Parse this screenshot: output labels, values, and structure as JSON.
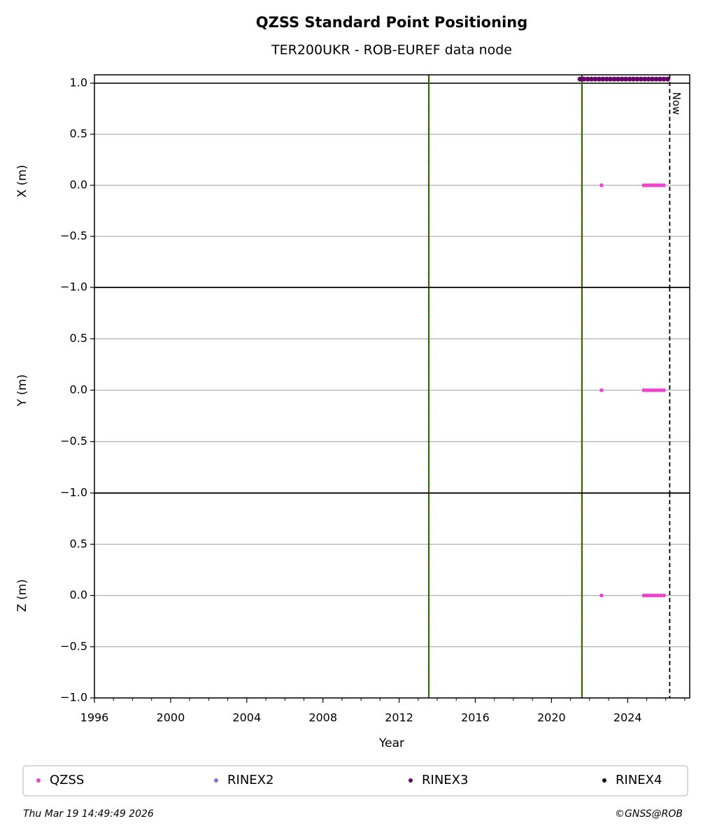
{
  "chart_data": {
    "type": "scatter",
    "title": "QZSS Standard Point Positioning",
    "subtitle": "TER200UKR - ROB-EUREF data node",
    "xlabel": "Year",
    "xlim": [
      1996,
      2027.26
    ],
    "xticks": [
      1996,
      2000,
      2004,
      2008,
      2012,
      2016,
      2020,
      2024
    ],
    "xminorticks": [
      1997,
      1998,
      1999,
      2001,
      2002,
      2003,
      2005,
      2006,
      2007,
      2009,
      2010,
      2011,
      2013,
      2014,
      2015,
      2017,
      2018,
      2019,
      2021,
      2022,
      2023,
      2025,
      2026,
      2027
    ],
    "vlines": [
      2013.56,
      2021.6
    ],
    "now": {
      "x": 2026.21,
      "label": "Now"
    },
    "panels": [
      {
        "ylabel": "X (m)",
        "ylim": [
          -1,
          1.082
        ],
        "hline": 1,
        "yticks": [
          {
            "value": -1,
            "label": "−1.0"
          },
          {
            "value": -0.5,
            "label": "−0.5"
          },
          {
            "value": 0,
            "label": "0.0"
          },
          0.5,
          {
            "value": 1,
            "label": "1.0"
          }
        ],
        "series": [
          {
            "name": "QZSS",
            "color": "#ee44cc",
            "x": [
              2022.63,
              2024.85,
              2025.0,
              2025.15,
              2025.3,
              2025.45,
              2025.6,
              2025.75,
              2025.9
            ],
            "values": [
              0,
              0,
              0,
              0,
              0,
              0,
              0,
              0,
              0
            ]
          },
          {
            "name": "RINEX3",
            "color": "#660066",
            "x": [
              2021.5,
              2021.7,
              2021.9,
              2022.1,
              2022.3,
              2022.5,
              2022.7,
              2022.9,
              2023.1,
              2023.3,
              2023.5,
              2023.7,
              2023.9,
              2024.1,
              2024.3,
              2024.5,
              2024.7,
              2024.9,
              2025.1,
              2025.3,
              2025.5,
              2025.7,
              2025.9,
              2026.1
            ],
            "values": [
              1.04,
              1.04,
              1.04,
              1.04,
              1.04,
              1.04,
              1.04,
              1.04,
              1.04,
              1.04,
              1.04,
              1.04,
              1.04,
              1.04,
              1.04,
              1.04,
              1.04,
              1.04,
              1.04,
              1.04,
              1.04,
              1.04,
              1.04,
              1.04
            ]
          }
        ]
      },
      {
        "ylabel": "Y (m)",
        "ylim": [
          -1,
          1
        ],
        "yticks": [
          {
            "value": -1,
            "label": "−1.0"
          },
          {
            "value": -0.5,
            "label": "−0.5"
          },
          {
            "value": 0,
            "label": "0.0"
          },
          0.5
        ],
        "series": [
          {
            "name": "QZSS",
            "color": "#ee44cc",
            "x": [
              2022.63,
              2024.85,
              2025.0,
              2025.15,
              2025.3,
              2025.45,
              2025.6,
              2025.75,
              2025.9
            ],
            "values": [
              0,
              0,
              0,
              0,
              0,
              0,
              0,
              0,
              0
            ]
          }
        ]
      },
      {
        "ylabel": "Z (m)",
        "ylim": [
          -1,
          1
        ],
        "yticks": [
          {
            "value": -1,
            "label": "−1.0"
          },
          {
            "value": -0.5,
            "label": "−0.5"
          },
          {
            "value": 0,
            "label": "0.0"
          },
          0.5
        ],
        "series": [
          {
            "name": "QZSS",
            "color": "#ee44cc",
            "x": [
              2022.63,
              2024.85,
              2025.0,
              2025.15,
              2025.3,
              2025.45,
              2025.6,
              2025.75,
              2025.9
            ],
            "values": [
              0,
              0,
              0,
              0,
              0,
              0,
              0,
              0,
              0
            ]
          }
        ]
      }
    ],
    "legend": [
      {
        "name": "QZSS",
        "color": "#ee44cc"
      },
      {
        "name": "RINEX2",
        "color": "#7777cc"
      },
      {
        "name": "RINEX3",
        "color": "#660066"
      },
      {
        "name": "RINEX4",
        "color": "#220022"
      }
    ],
    "footer_left": "Thu Mar 19 14:49:49 2026",
    "footer_right": "©GNSS@ROB"
  }
}
